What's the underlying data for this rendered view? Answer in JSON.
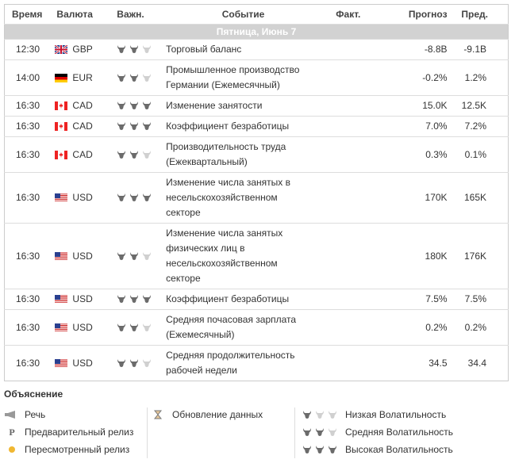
{
  "header": {
    "time": "Время",
    "currency": "Валюта",
    "importance": "Важн.",
    "event": "Событие",
    "actual": "Факт.",
    "forecast": "Прогноз",
    "previous": "Пред."
  },
  "date": "Пятница, Июнь 7",
  "rows": [
    {
      "time": "12:30",
      "currency": "GBP",
      "importance": 2,
      "event": [
        "Торговый баланс"
      ],
      "forecast": "-8.8B",
      "previous": "-9.1B"
    },
    {
      "time": "14:00",
      "currency": "EUR",
      "importance": 2,
      "event": [
        "Промышленное производство",
        "Германии (Ежемесячный)"
      ],
      "forecast": "-0.2%",
      "previous": "1.2%"
    },
    {
      "time": "16:30",
      "currency": "CAD",
      "importance": 3,
      "event": [
        "Изменение занятости"
      ],
      "forecast": "15.0K",
      "previous": "12.5K"
    },
    {
      "time": "16:30",
      "currency": "CAD",
      "importance": 3,
      "event": [
        "Коэффициент безработицы"
      ],
      "forecast": "7.0%",
      "previous": "7.2%"
    },
    {
      "time": "16:30",
      "currency": "CAD",
      "importance": 2,
      "event": [
        "Производительность труда",
        "(Ежеквартальный)"
      ],
      "forecast": "0.3%",
      "previous": "0.1%"
    },
    {
      "time": "16:30",
      "currency": "USD",
      "importance": 3,
      "event": [
        "Изменение числа занятых в",
        "несельскохозяйственном",
        "секторе"
      ],
      "forecast": "170K",
      "previous": "165K"
    },
    {
      "time": "16:30",
      "currency": "USD",
      "importance": 2,
      "event": [
        "Изменение числа занятых",
        "физических лиц в",
        "несельскохозяйственном",
        "секторе"
      ],
      "forecast": "180K",
      "previous": "176K"
    },
    {
      "time": "16:30",
      "currency": "USD",
      "importance": 3,
      "event": [
        "Коэффициент безработицы"
      ],
      "forecast": "7.5%",
      "previous": "7.5%"
    },
    {
      "time": "16:30",
      "currency": "USD",
      "importance": 2,
      "event": [
        "Средняя почасовая зарплата",
        "(Ежемесячный)"
      ],
      "forecast": "0.2%",
      "previous": "0.2%"
    },
    {
      "time": "16:30",
      "currency": "USD",
      "importance": 2,
      "event": [
        "Средняя продолжительность",
        "рабочей недели"
      ],
      "forecast": "34.5",
      "previous": "34.4"
    }
  ],
  "legend": {
    "title": "Объяснение",
    "speech": "Речь",
    "preliminary": "Предварительный релиз",
    "revised": "Пересмотренный релиз",
    "update": "Обновление данных",
    "low": "Низкая Волатильность",
    "medium": "Средняя Волатильность",
    "high": "Высокая Волатильность",
    "preliminary_icon": "P"
  }
}
